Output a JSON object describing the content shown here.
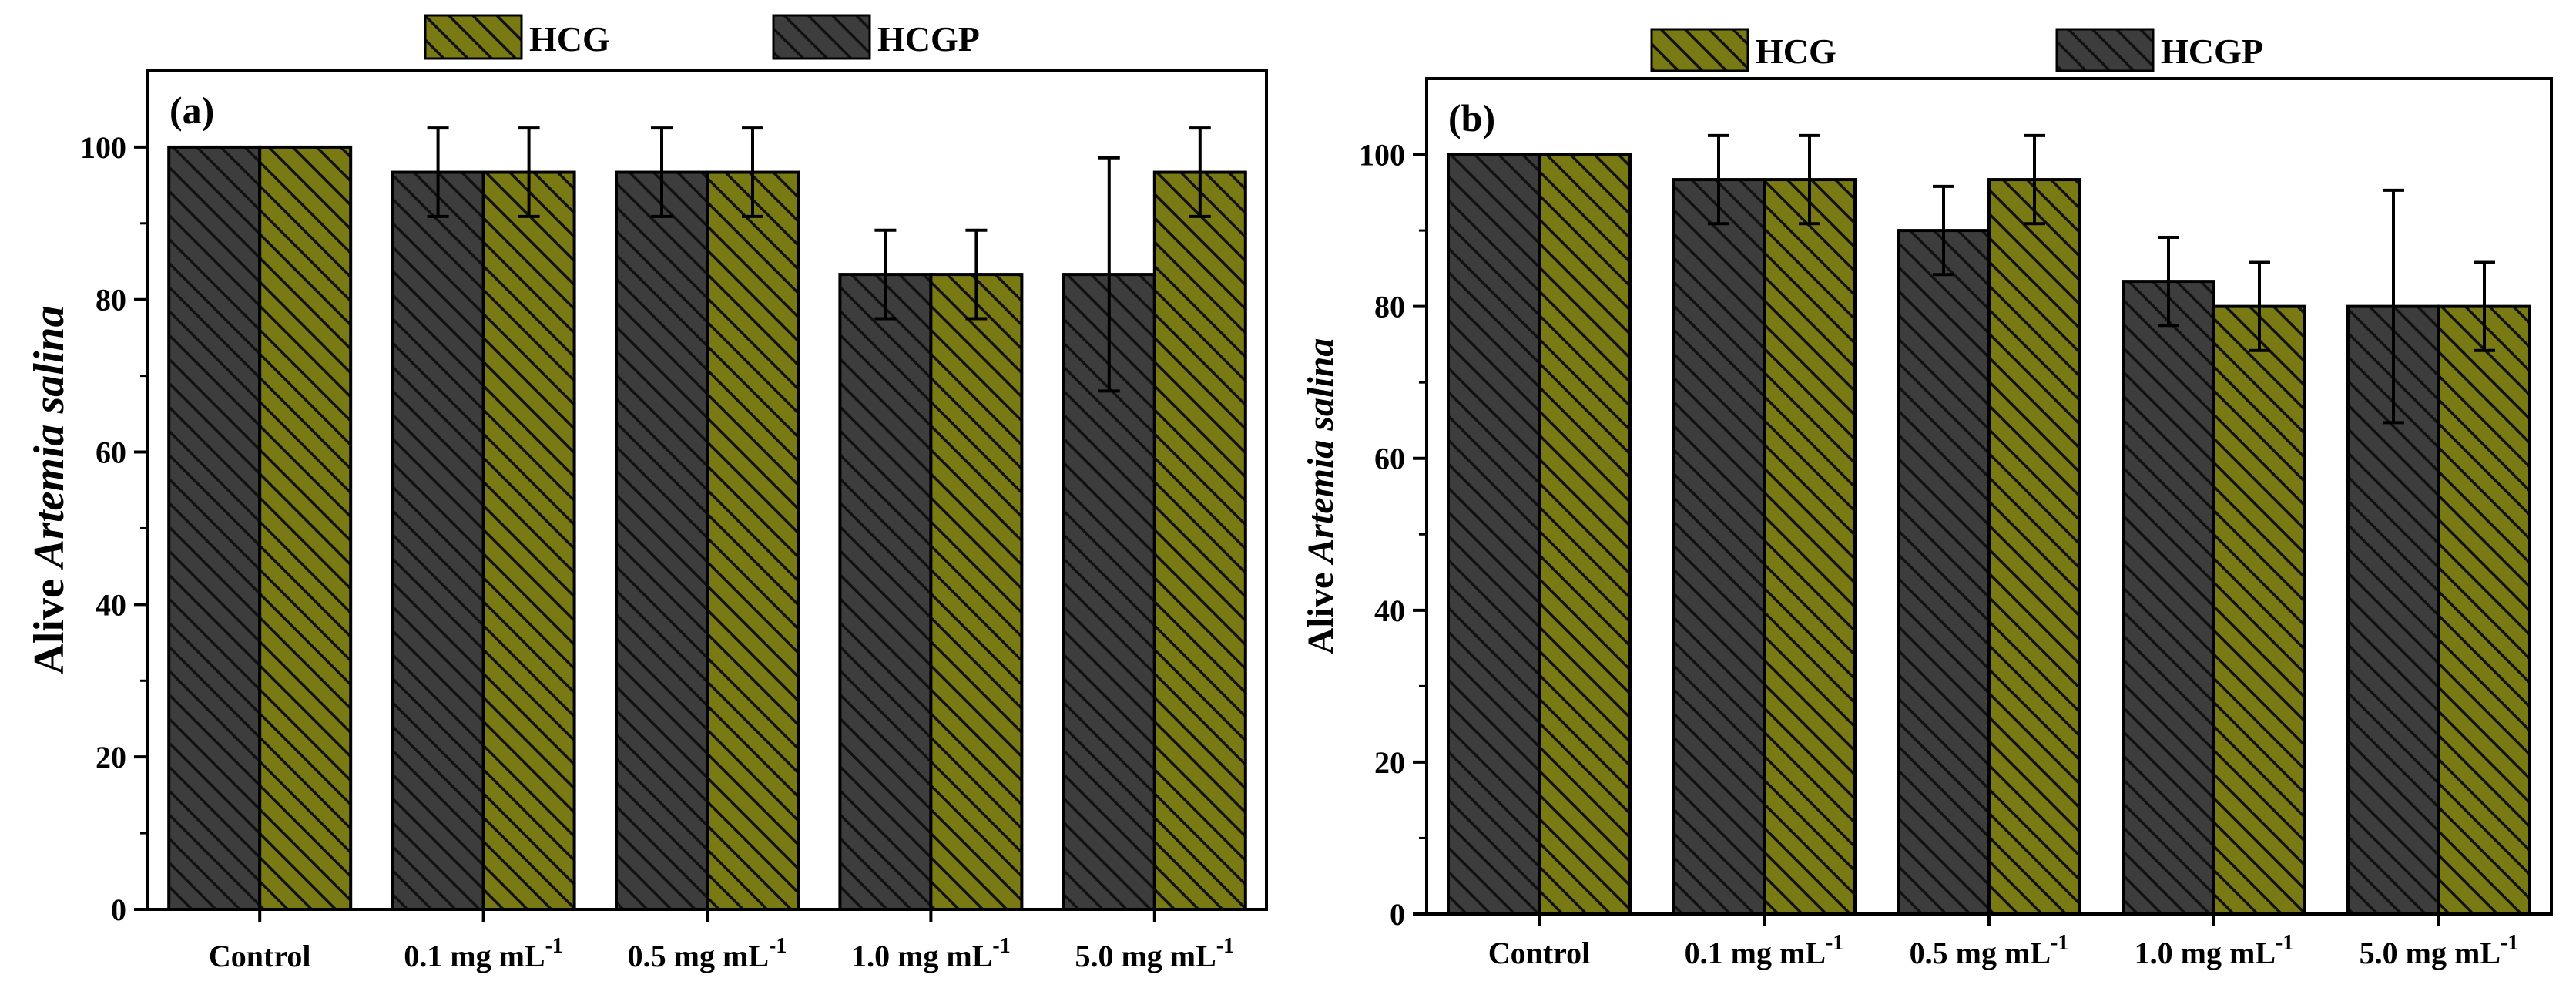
{
  "colors": {
    "HCG": "#7a7a14",
    "HCGP": "#3d3d3d",
    "hatch": "#111111",
    "axis": "#000000"
  },
  "chart_data": [
    {
      "type": "bar",
      "panel_label": "(a)",
      "ylabel_prefix": "Alive ",
      "ylabel_italic": "Artemia salina",
      "ylim": [
        0,
        110
      ],
      "yticks": [
        "0",
        "20",
        "40",
        "60",
        "80",
        "100"
      ],
      "categories": [
        {
          "main": "Control",
          "sup": ""
        },
        {
          "main": "0.1 mg mL",
          "sup": "-1"
        },
        {
          "main": "0.5 mg mL",
          "sup": "-1"
        },
        {
          "main": "1.0 mg mL",
          "sup": "-1"
        },
        {
          "main": "5.0 mg mL",
          "sup": "-1"
        }
      ],
      "legend": [
        "HCG",
        "HCGP"
      ],
      "series": [
        {
          "name": "HCGP",
          "values": [
            100,
            96.7,
            96.7,
            83.3,
            83.3
          ],
          "errors": [
            0,
            5.8,
            5.8,
            5.8,
            15.3
          ]
        },
        {
          "name": "HCG",
          "values": [
            100,
            96.7,
            96.7,
            83.3,
            96.7
          ],
          "errors": [
            0,
            5.8,
            5.8,
            5.8,
            5.8
          ]
        }
      ]
    },
    {
      "type": "bar",
      "panel_label": "(b)",
      "ylabel_prefix": "Alive ",
      "ylabel_italic": "Artemia salina",
      "ylim": [
        0,
        110
      ],
      "yticks": [
        "0",
        "20",
        "40",
        "60",
        "80",
        "100"
      ],
      "categories": [
        {
          "main": "Control",
          "sup": ""
        },
        {
          "main": "0.1 mg mL",
          "sup": "-1"
        },
        {
          "main": "0.5 mg mL",
          "sup": "-1"
        },
        {
          "main": "1.0 mg mL",
          "sup": "-1"
        },
        {
          "main": "5.0 mg mL",
          "sup": "-1"
        }
      ],
      "legend": [
        "HCG",
        "HCGP"
      ],
      "series": [
        {
          "name": "HCGP",
          "values": [
            100,
            96.7,
            90,
            83.3,
            80
          ],
          "errors": [
            0,
            5.8,
            5.8,
            5.8,
            15.3
          ]
        },
        {
          "name": "HCG",
          "values": [
            100,
            96.7,
            96.7,
            80,
            80
          ],
          "errors": [
            0,
            5.8,
            5.8,
            5.8,
            5.8
          ]
        }
      ]
    }
  ]
}
